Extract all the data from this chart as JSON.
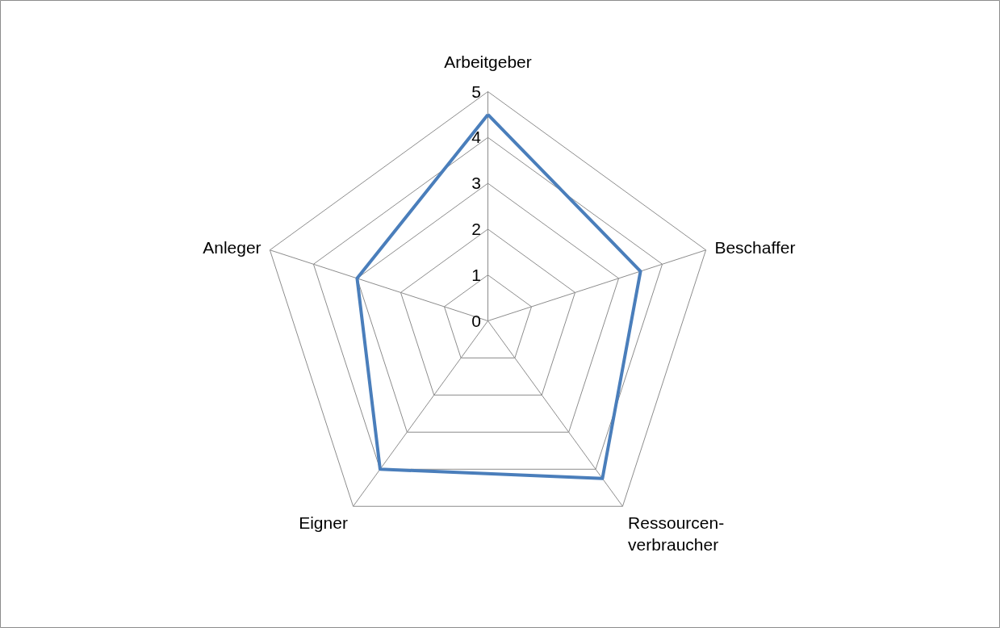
{
  "chart_data": {
    "type": "radar",
    "categories": [
      "Arbeitgeber",
      "Beschaffer",
      "Ressourcen-\nverbraucher",
      "Eigner",
      "Anleger"
    ],
    "series": [
      {
        "color": "#4a7ebb",
        "values": [
          4.5,
          3.5,
          4.25,
          4,
          3
        ]
      }
    ],
    "ylim": [
      0,
      5
    ],
    "yticks": [
      0,
      1,
      2,
      3,
      4,
      5
    ],
    "grid": true,
    "line_style": "solid"
  }
}
